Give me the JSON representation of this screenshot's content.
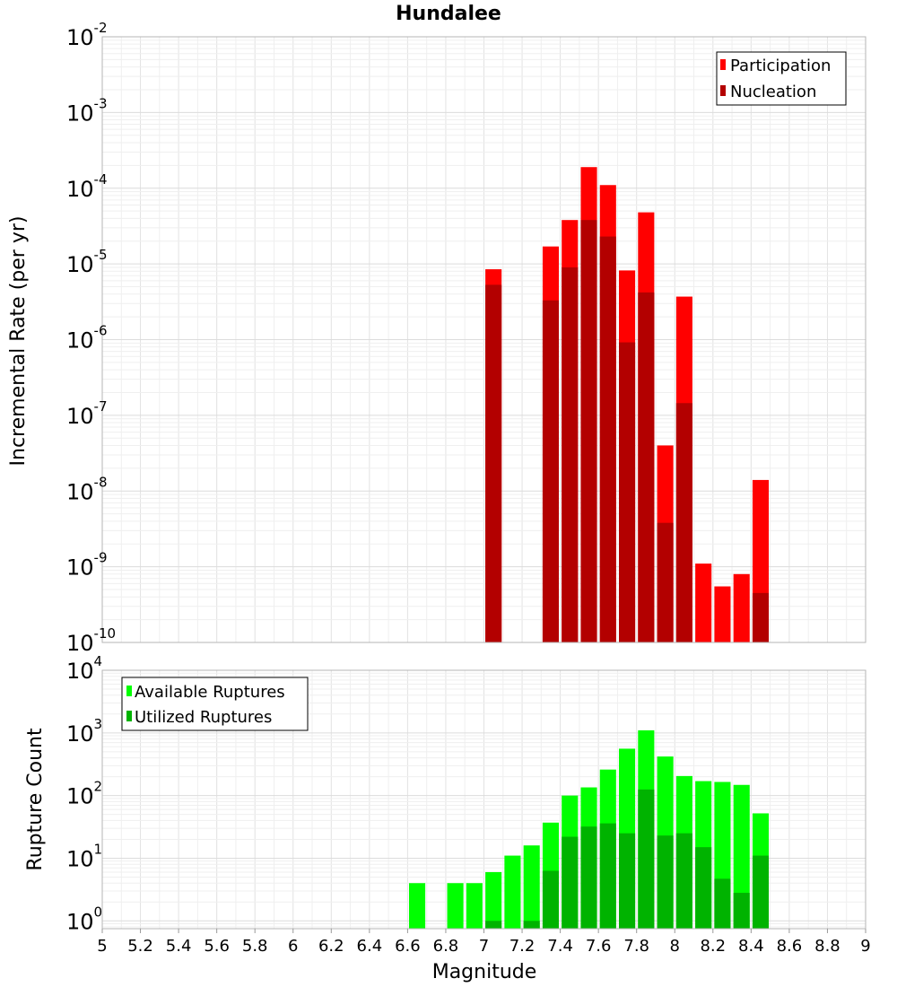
{
  "chart_data": [
    {
      "type": "bar",
      "title": "Hundalee",
      "xlabel": "",
      "ylabel": "Incremental Rate (per yr)",
      "xlim": [
        5,
        9
      ],
      "ylim": [
        1e-10,
        0.01
      ],
      "y_scale": "log",
      "grid": true,
      "legend_placement": "top-right",
      "series": [
        {
          "name": "Participation",
          "color": "#ff0000",
          "x": [
            7.05,
            7.35,
            7.45,
            7.55,
            7.65,
            7.75,
            7.85,
            7.95,
            8.05,
            8.15,
            8.25,
            8.35,
            8.45
          ],
          "values": [
            8.5e-06,
            1.7e-05,
            3.8e-05,
            0.00019,
            0.00011,
            8.2e-06,
            4.8e-05,
            4e-08,
            3.7e-06,
            1.1e-09,
            5.5e-10,
            8e-10,
            1.4e-08
          ]
        },
        {
          "name": "Nucleation",
          "color": "#b30000",
          "x": [
            7.05,
            7.35,
            7.45,
            7.55,
            7.65,
            7.75,
            7.85,
            7.95,
            8.05,
            8.45
          ],
          "values": [
            5.3e-06,
            3.3e-06,
            9e-06,
            3.8e-05,
            2.3e-05,
            9.2e-07,
            4.2e-06,
            3.8e-09,
            1.45e-07,
            4.5e-10
          ]
        }
      ]
    },
    {
      "type": "bar",
      "title": "",
      "xlabel": "Magnitude",
      "ylabel": "Rupture Count",
      "xlim": [
        5,
        9
      ],
      "ylim": [
        0.75,
        10000.0
      ],
      "y_scale": "log",
      "grid": true,
      "legend_placement": "top-left",
      "series": [
        {
          "name": "Available Ruptures",
          "color": "#00ff00",
          "x": [
            6.65,
            6.85,
            6.95,
            7.05,
            7.15,
            7.25,
            7.35,
            7.45,
            7.55,
            7.65,
            7.75,
            7.85,
            7.95,
            8.05,
            8.15,
            8.25,
            8.35,
            8.45
          ],
          "values": [
            4,
            4,
            4,
            6,
            11,
            16,
            37,
            100,
            135,
            260,
            560,
            1100,
            420,
            205,
            170,
            165,
            148,
            52
          ]
        },
        {
          "name": "Utilized Ruptures",
          "color": "#00b300",
          "x": [
            7.05,
            7.25,
            7.35,
            7.45,
            7.55,
            7.65,
            7.75,
            7.85,
            7.95,
            8.05,
            8.15,
            8.25,
            8.35,
            8.45
          ],
          "values": [
            1,
            1,
            6.3,
            22,
            32,
            36,
            25,
            125,
            23,
            25,
            15,
            4.7,
            2.8,
            11
          ]
        }
      ],
      "x_tick_labels": [
        "5",
        "5.2",
        "5.4",
        "5.6",
        "5.8",
        "6",
        "6.2",
        "6.4",
        "6.6",
        "6.8",
        "7",
        "7.2",
        "7.4",
        "7.6",
        "7.8",
        "8",
        "8.2",
        "8.4",
        "8.6",
        "8.8",
        "9"
      ]
    }
  ],
  "top_y_ticks": [
    {
      "base": "10",
      "exp": "-2"
    },
    {
      "base": "10",
      "exp": "-3"
    },
    {
      "base": "10",
      "exp": "-4"
    },
    {
      "base": "10",
      "exp": "-5"
    },
    {
      "base": "10",
      "exp": "-6"
    },
    {
      "base": "10",
      "exp": "-7"
    },
    {
      "base": "10",
      "exp": "-8"
    },
    {
      "base": "10",
      "exp": "-9"
    },
    {
      "base": "10",
      "exp": "-10"
    }
  ],
  "bottom_y_ticks": [
    {
      "base": "10",
      "exp": "4"
    },
    {
      "base": "10",
      "exp": "3"
    },
    {
      "base": "10",
      "exp": "2"
    },
    {
      "base": "10",
      "exp": "1"
    },
    {
      "base": "10",
      "exp": "0"
    }
  ]
}
